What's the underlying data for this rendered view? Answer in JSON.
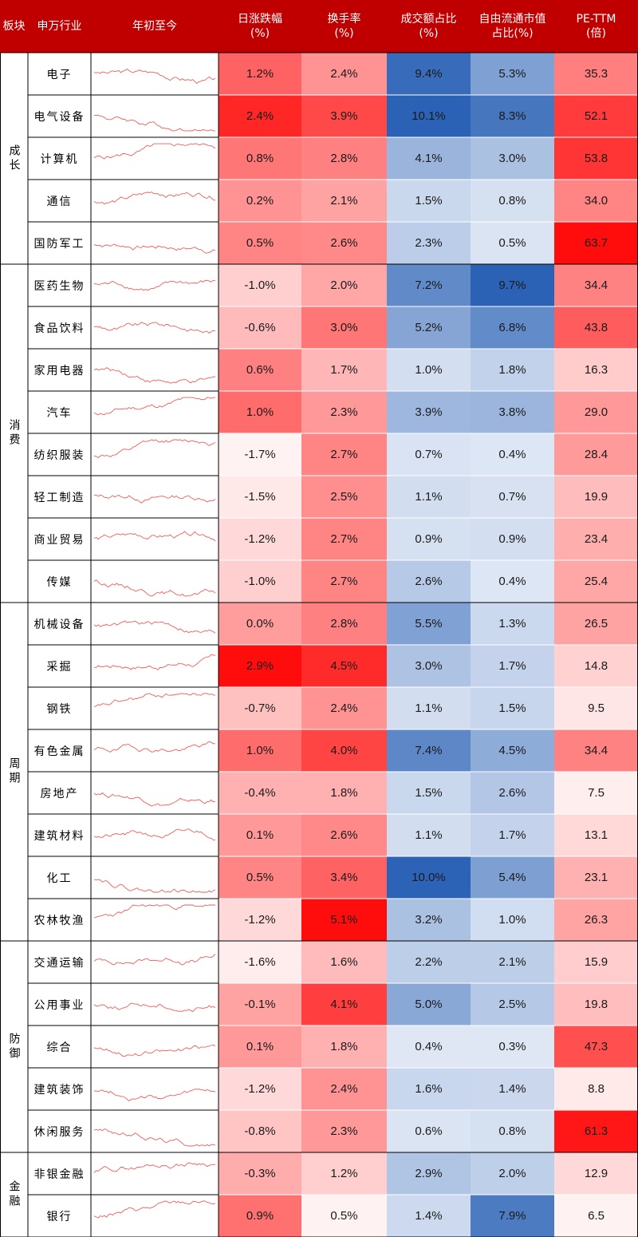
{
  "chart_data": {
    "type": "table",
    "headers": [
      "板块",
      "申万行业",
      "年初至今",
      "日涨跌幅\n(%)",
      "换手率\n(%)",
      "成交额占比\n(%)",
      "自由流通市值\n占比(%)",
      "PE-TTM\n(倍)"
    ],
    "groups": [
      {
        "name": "成长",
        "rows": 5
      },
      {
        "name": "消费",
        "rows": 8
      },
      {
        "name": "周期",
        "rows": 8
      },
      {
        "name": "防御",
        "rows": 5
      },
      {
        "name": "金融",
        "rows": 2
      }
    ],
    "rows": [
      {
        "industry": "电子",
        "daily": "1.2%",
        "turnover": "2.4%",
        "amount": "9.4%",
        "mcap": "5.3%",
        "pe": "35.3"
      },
      {
        "industry": "电气设备",
        "daily": "2.4%",
        "turnover": "3.9%",
        "amount": "10.1%",
        "mcap": "8.3%",
        "pe": "52.1"
      },
      {
        "industry": "计算机",
        "daily": "0.8%",
        "turnover": "2.8%",
        "amount": "4.1%",
        "mcap": "3.0%",
        "pe": "53.8"
      },
      {
        "industry": "通信",
        "daily": "0.2%",
        "turnover": "2.1%",
        "amount": "1.5%",
        "mcap": "0.8%",
        "pe": "34.0"
      },
      {
        "industry": "国防军工",
        "daily": "0.5%",
        "turnover": "2.6%",
        "amount": "2.3%",
        "mcap": "0.5%",
        "pe": "63.7"
      },
      {
        "industry": "医药生物",
        "daily": "-1.0%",
        "turnover": "2.0%",
        "amount": "7.2%",
        "mcap": "9.7%",
        "pe": "34.4"
      },
      {
        "industry": "食品饮料",
        "daily": "-0.6%",
        "turnover": "3.0%",
        "amount": "5.2%",
        "mcap": "6.8%",
        "pe": "43.8"
      },
      {
        "industry": "家用电器",
        "daily": "0.6%",
        "turnover": "1.7%",
        "amount": "1.0%",
        "mcap": "1.8%",
        "pe": "16.3"
      },
      {
        "industry": "汽车",
        "daily": "1.0%",
        "turnover": "2.3%",
        "amount": "3.9%",
        "mcap": "3.8%",
        "pe": "29.0"
      },
      {
        "industry": "纺织服装",
        "daily": "-1.7%",
        "turnover": "2.7%",
        "amount": "0.7%",
        "mcap": "0.4%",
        "pe": "28.4"
      },
      {
        "industry": "轻工制造",
        "daily": "-1.5%",
        "turnover": "2.5%",
        "amount": "1.1%",
        "mcap": "0.7%",
        "pe": "19.9"
      },
      {
        "industry": "商业贸易",
        "daily": "-1.2%",
        "turnover": "2.7%",
        "amount": "0.9%",
        "mcap": "0.9%",
        "pe": "23.4"
      },
      {
        "industry": "传媒",
        "daily": "-1.0%",
        "turnover": "2.7%",
        "amount": "2.6%",
        "mcap": "0.4%",
        "pe": "25.4"
      },
      {
        "industry": "机械设备",
        "daily": "0.0%",
        "turnover": "2.8%",
        "amount": "5.5%",
        "mcap": "1.3%",
        "pe": "26.5"
      },
      {
        "industry": "采掘",
        "daily": "2.9%",
        "turnover": "4.5%",
        "amount": "3.0%",
        "mcap": "1.7%",
        "pe": "14.8"
      },
      {
        "industry": "钢铁",
        "daily": "-0.7%",
        "turnover": "2.4%",
        "amount": "1.1%",
        "mcap": "1.5%",
        "pe": "9.5"
      },
      {
        "industry": "有色金属",
        "daily": "1.0%",
        "turnover": "4.0%",
        "amount": "7.4%",
        "mcap": "4.5%",
        "pe": "34.4"
      },
      {
        "industry": "房地产",
        "daily": "-0.4%",
        "turnover": "1.8%",
        "amount": "1.5%",
        "mcap": "2.6%",
        "pe": "7.5"
      },
      {
        "industry": "建筑材料",
        "daily": "0.1%",
        "turnover": "2.6%",
        "amount": "1.1%",
        "mcap": "1.7%",
        "pe": "13.1"
      },
      {
        "industry": "化工",
        "daily": "0.5%",
        "turnover": "3.4%",
        "amount": "10.0%",
        "mcap": "5.4%",
        "pe": "23.1"
      },
      {
        "industry": "农林牧渔",
        "daily": "-1.2%",
        "turnover": "5.1%",
        "amount": "3.2%",
        "mcap": "1.0%",
        "pe": "26.3"
      },
      {
        "industry": "交通运输",
        "daily": "-1.6%",
        "turnover": "1.6%",
        "amount": "2.2%",
        "mcap": "2.1%",
        "pe": "15.9"
      },
      {
        "industry": "公用事业",
        "daily": "-0.1%",
        "turnover": "4.1%",
        "amount": "5.0%",
        "mcap": "2.5%",
        "pe": "19.8"
      },
      {
        "industry": "综合",
        "daily": "0.1%",
        "turnover": "1.8%",
        "amount": "0.4%",
        "mcap": "0.3%",
        "pe": "47.3"
      },
      {
        "industry": "建筑装饰",
        "daily": "-1.2%",
        "turnover": "2.4%",
        "amount": "1.6%",
        "mcap": "1.4%",
        "pe": "8.8"
      },
      {
        "industry": "休闲服务",
        "daily": "-0.8%",
        "turnover": "2.3%",
        "amount": "0.6%",
        "mcap": "0.8%",
        "pe": "61.3"
      },
      {
        "industry": "非银金融",
        "daily": "-0.3%",
        "turnover": "1.2%",
        "amount": "2.9%",
        "mcap": "2.0%",
        "pe": "12.9"
      },
      {
        "industry": "银行",
        "daily": "0.9%",
        "turnover": "0.5%",
        "amount": "1.4%",
        "mcap": "7.9%",
        "pe": "6.5"
      }
    ],
    "sparkline_color": "#f25c5c",
    "header_color": "#c00000",
    "heat_colors": {
      "positive": "#ff0000",
      "negative": "#2b62b5",
      "base": "#ffffff"
    }
  }
}
